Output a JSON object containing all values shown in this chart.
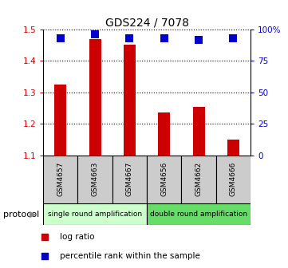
{
  "title": "GDS224 / 7078",
  "categories": [
    "GSM4657",
    "GSM4663",
    "GSM4667",
    "GSM4656",
    "GSM4662",
    "GSM4666"
  ],
  "log_ratio": [
    1.325,
    1.47,
    1.452,
    1.237,
    1.255,
    1.15
  ],
  "percentile_rank": [
    93,
    96,
    93,
    93,
    92,
    93
  ],
  "ylim_left": [
    1.1,
    1.5
  ],
  "ylim_right": [
    0,
    100
  ],
  "yticks_left": [
    1.1,
    1.2,
    1.3,
    1.4,
    1.5
  ],
  "yticks_right": [
    0,
    25,
    50,
    75,
    100
  ],
  "ytick_right_labels": [
    "0",
    "25",
    "50",
    "75",
    "100%"
  ],
  "bar_color": "#cc0000",
  "dot_color": "#0000cc",
  "bar_width": 0.35,
  "dot_size": 45,
  "background_color": "#ffffff",
  "tick_color_left": "#cc0000",
  "tick_color_right": "#0000cc",
  "label_box_color": "#cccccc",
  "protocol_groups": [
    {
      "label": "single round amplification",
      "n": 3,
      "color": "#ccffcc"
    },
    {
      "label": "double round amplification",
      "n": 3,
      "color": "#66dd66"
    }
  ],
  "protocol_label": "protocol",
  "legend_items": [
    {
      "label": "log ratio",
      "color": "#cc0000"
    },
    {
      "label": "percentile rank within the sample",
      "color": "#0000cc"
    }
  ]
}
